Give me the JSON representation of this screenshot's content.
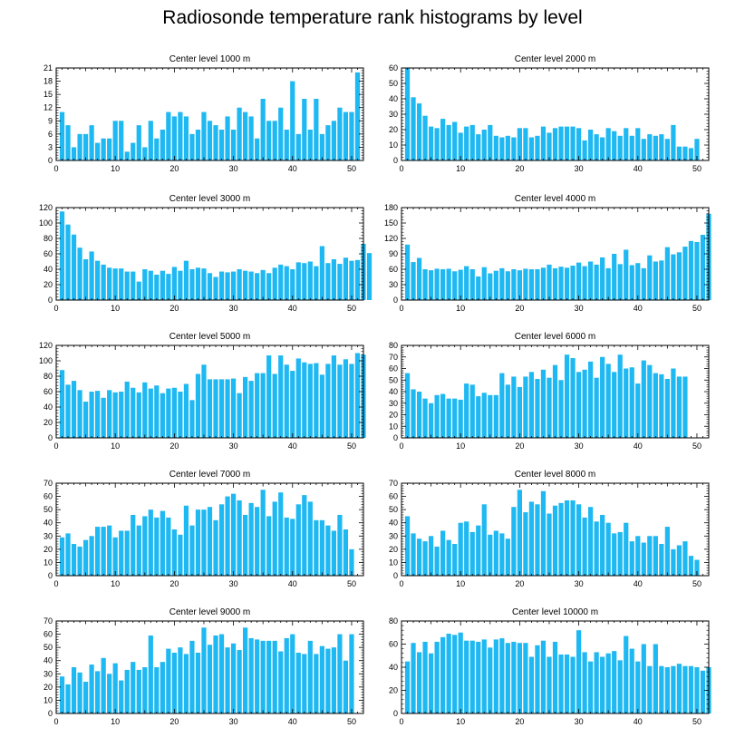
{
  "figure_title": "Radiosonde temperature rank histograms by level",
  "bar_color": "#1EB8F2",
  "axis_color": "#000000",
  "chart_data": [
    {
      "type": "bar",
      "title": "Center level 1000 m",
      "xlim": [
        0,
        52
      ],
      "ylim": [
        0,
        21
      ],
      "xticks": [
        0,
        10,
        20,
        30,
        40,
        50
      ],
      "yticks": [
        0,
        3,
        6,
        9,
        12,
        15,
        18,
        21
      ],
      "values": [
        11,
        8,
        3,
        6,
        6,
        8,
        4,
        5,
        5,
        9,
        9,
        2,
        4,
        8,
        3,
        9,
        5,
        7,
        11,
        10,
        11,
        10,
        6,
        7,
        11,
        9,
        8,
        7,
        10,
        7,
        12,
        11,
        10,
        5,
        14,
        9,
        9,
        12,
        7,
        18,
        6,
        14,
        7,
        14,
        6,
        8,
        9,
        12,
        11,
        11,
        20
      ]
    },
    {
      "type": "bar",
      "title": "Center level 2000 m",
      "xlim": [
        0,
        52
      ],
      "ylim": [
        0,
        60
      ],
      "xticks": [
        0,
        10,
        20,
        30,
        40,
        50
      ],
      "yticks": [
        0,
        10,
        20,
        30,
        40,
        50,
        60
      ],
      "values": [
        60,
        41,
        37,
        29,
        22,
        21,
        27,
        23,
        25,
        18,
        22,
        23,
        17,
        20,
        23,
        16,
        15,
        16,
        15,
        21,
        21,
        15,
        16,
        22,
        18,
        21,
        22,
        22,
        22,
        21,
        13,
        20,
        17,
        15,
        21,
        19,
        16,
        21,
        16,
        21,
        14,
        17,
        16,
        17,
        14,
        23,
        9,
        9,
        8,
        14
      ]
    },
    {
      "type": "bar",
      "title": "Center level 3000 m",
      "xlim": [
        0,
        52
      ],
      "ylim": [
        0,
        120
      ],
      "xticks": [
        0,
        10,
        20,
        30,
        40,
        50
      ],
      "yticks": [
        0,
        20,
        40,
        60,
        80,
        100,
        120
      ],
      "values": [
        115,
        98,
        85,
        68,
        53,
        63,
        51,
        46,
        42,
        41,
        41,
        37,
        37,
        24,
        40,
        38,
        33,
        38,
        34,
        43,
        38,
        51,
        40,
        42,
        41,
        35,
        30,
        37,
        36,
        37,
        40,
        38,
        37,
        35,
        39,
        35,
        42,
        46,
        44,
        40,
        49,
        48,
        50,
        44,
        70,
        48,
        53,
        47,
        55,
        51,
        52,
        73,
        61
      ]
    },
    {
      "type": "bar",
      "title": "Center level 4000 m",
      "xlim": [
        0,
        52
      ],
      "ylim": [
        0,
        180
      ],
      "xticks": [
        0,
        10,
        20,
        30,
        40,
        50
      ],
      "yticks": [
        0,
        30,
        60,
        90,
        120,
        150,
        180
      ],
      "values": [
        108,
        74,
        82,
        60,
        58,
        61,
        60,
        61,
        56,
        59,
        66,
        60,
        46,
        64,
        52,
        57,
        62,
        56,
        60,
        58,
        61,
        60,
        60,
        63,
        69,
        62,
        65,
        63,
        67,
        73,
        66,
        75,
        69,
        83,
        62,
        90,
        70,
        98,
        68,
        72,
        62,
        87,
        75,
        77,
        103,
        89,
        93,
        104,
        115,
        113,
        127,
        168
      ]
    },
    {
      "type": "bar",
      "title": "Center level 5000 m",
      "xlim": [
        0,
        52
      ],
      "ylim": [
        0,
        120
      ],
      "xticks": [
        0,
        10,
        20,
        30,
        40,
        50
      ],
      "yticks": [
        0,
        20,
        40,
        60,
        80,
        100,
        120
      ],
      "values": [
        88,
        69,
        74,
        62,
        47,
        60,
        61,
        52,
        62,
        59,
        60,
        73,
        65,
        59,
        72,
        64,
        68,
        58,
        64,
        65,
        60,
        70,
        49,
        83,
        95,
        76,
        76,
        76,
        76,
        77,
        58,
        79,
        74,
        84,
        84,
        107,
        83,
        107,
        95,
        87,
        103,
        98,
        96,
        97,
        82,
        96,
        107,
        95,
        102,
        96,
        110,
        108
      ]
    },
    {
      "type": "bar",
      "title": "Center level 6000 m",
      "xlim": [
        0,
        52
      ],
      "ylim": [
        0,
        80
      ],
      "xticks": [
        0,
        10,
        20,
        30,
        40,
        50
      ],
      "yticks": [
        0,
        10,
        20,
        30,
        40,
        50,
        60,
        70,
        80
      ],
      "values": [
        56,
        42,
        40,
        34,
        30,
        37,
        38,
        34,
        34,
        33,
        47,
        46,
        36,
        39,
        37,
        37,
        56,
        46,
        53,
        44,
        53,
        57,
        51,
        59,
        52,
        63,
        50,
        72,
        69,
        57,
        59,
        66,
        52,
        70,
        64,
        57,
        72,
        60,
        61,
        47,
        67,
        63,
        56,
        55,
        51,
        60,
        53,
        53
      ]
    },
    {
      "type": "bar",
      "title": "Center level 7000 m",
      "xlim": [
        0,
        52
      ],
      "ylim": [
        0,
        70
      ],
      "xticks": [
        0,
        10,
        20,
        30,
        40,
        50
      ],
      "yticks": [
        0,
        10,
        20,
        30,
        40,
        50,
        60,
        70
      ],
      "values": [
        29,
        32,
        24,
        22,
        27,
        30,
        37,
        37,
        38,
        29,
        34,
        34,
        46,
        38,
        45,
        50,
        44,
        49,
        44,
        35,
        31,
        53,
        38,
        50,
        50,
        52,
        42,
        54,
        60,
        62,
        57,
        46,
        55,
        52,
        65,
        45,
        56,
        63,
        44,
        43,
        54,
        61,
        56,
        42,
        42,
        38,
        34,
        46,
        35,
        20
      ]
    },
    {
      "type": "bar",
      "title": "Center level 8000 m",
      "xlim": [
        0,
        52
      ],
      "ylim": [
        0,
        70
      ],
      "xticks": [
        0,
        10,
        20,
        30,
        40,
        50
      ],
      "yticks": [
        0,
        10,
        20,
        30,
        40,
        50,
        60,
        70
      ],
      "values": [
        45,
        32,
        28,
        26,
        30,
        22,
        34,
        27,
        24,
        40,
        41,
        33,
        38,
        54,
        31,
        34,
        32,
        28,
        52,
        65,
        48,
        56,
        54,
        64,
        47,
        53,
        55,
        57,
        57,
        54,
        44,
        52,
        41,
        46,
        40,
        32,
        33,
        40,
        26,
        30,
        25,
        30,
        30,
        24,
        37,
        20,
        23,
        26,
        15,
        12
      ]
    },
    {
      "type": "bar",
      "title": "Center level 9000 m",
      "xlim": [
        0,
        52
      ],
      "ylim": [
        0,
        70
      ],
      "xticks": [
        0,
        10,
        20,
        30,
        40,
        50
      ],
      "yticks": [
        0,
        10,
        20,
        30,
        40,
        50,
        60,
        70
      ],
      "values": [
        28,
        22,
        35,
        31,
        24,
        37,
        32,
        42,
        30,
        38,
        25,
        33,
        39,
        33,
        35,
        59,
        35,
        39,
        49,
        46,
        50,
        45,
        55,
        46,
        65,
        52,
        59,
        60,
        50,
        53,
        48,
        65,
        57,
        56,
        55,
        55,
        55,
        47,
        57,
        60,
        46,
        45,
        55,
        45,
        51,
        49,
        50,
        60,
        40,
        60
      ]
    },
    {
      "type": "bar",
      "title": "Center level 10000 m",
      "xlim": [
        0,
        52
      ],
      "ylim": [
        0,
        80
      ],
      "xticks": [
        0,
        10,
        20,
        30,
        40,
        50
      ],
      "yticks": [
        0,
        20,
        40,
        60,
        80
      ],
      "values": [
        45,
        61,
        53,
        62,
        52,
        62,
        66,
        69,
        68,
        70,
        63,
        63,
        62,
        64,
        57,
        64,
        65,
        61,
        62,
        61,
        61,
        49,
        59,
        63,
        49,
        62,
        51,
        51,
        49,
        72,
        53,
        45,
        53,
        49,
        52,
        54,
        46,
        67,
        56,
        45,
        60,
        41,
        60,
        41,
        40,
        41,
        43,
        41,
        41,
        40,
        37,
        40
      ]
    }
  ]
}
